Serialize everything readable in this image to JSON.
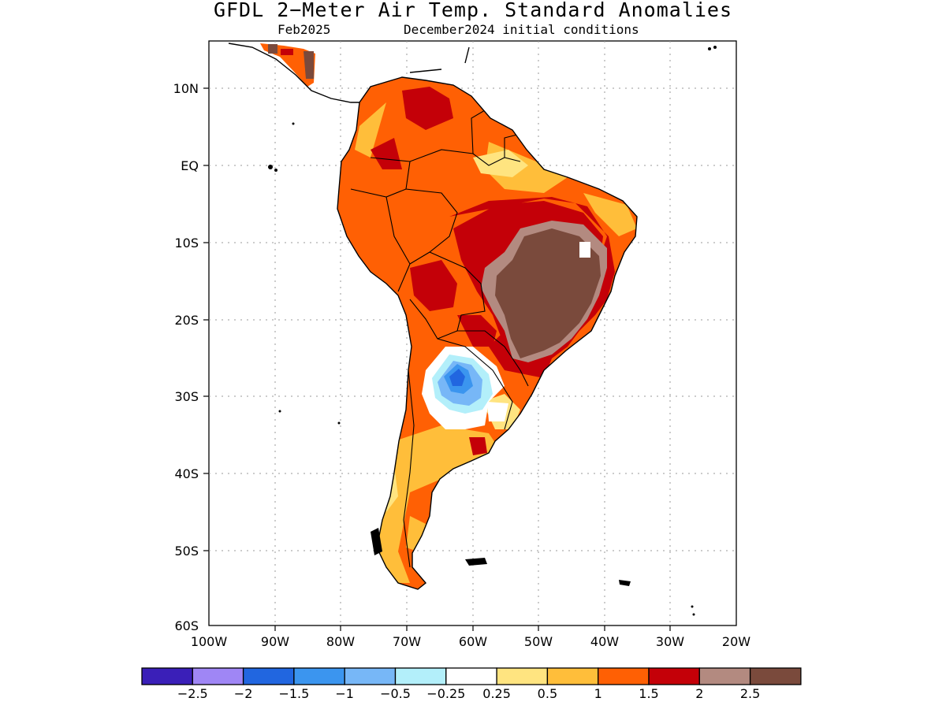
{
  "title": "GFDL 2−Meter Air Temp. Standard Anomalies",
  "subtitle_left": "Feb2025",
  "subtitle_right": "December2024 initial conditions",
  "axes": {
    "lat_ticks": [
      "10N",
      "EQ",
      "10S",
      "20S",
      "30S",
      "40S",
      "50S",
      "60S"
    ],
    "lon_ticks": [
      "100W",
      "90W",
      "80W",
      "70W",
      "60W",
      "50W",
      "40W",
      "30W",
      "20W"
    ]
  },
  "colorbar": {
    "colors": [
      "#3a1fb8",
      "#9f86f5",
      "#2166e0",
      "#3b95ef",
      "#77b7f7",
      "#b3effa",
      "#ffffff",
      "#ffe480",
      "#ffbe3a",
      "#ff6004",
      "#c40008",
      "#b38a80",
      "#7a4a3c"
    ],
    "labels": [
      "−2.5",
      "−2",
      "−1.5",
      "−1",
      "−0.5",
      "−0.25",
      "0.25",
      "0.5",
      "1",
      "1.5",
      "2",
      "2.5"
    ]
  }
}
